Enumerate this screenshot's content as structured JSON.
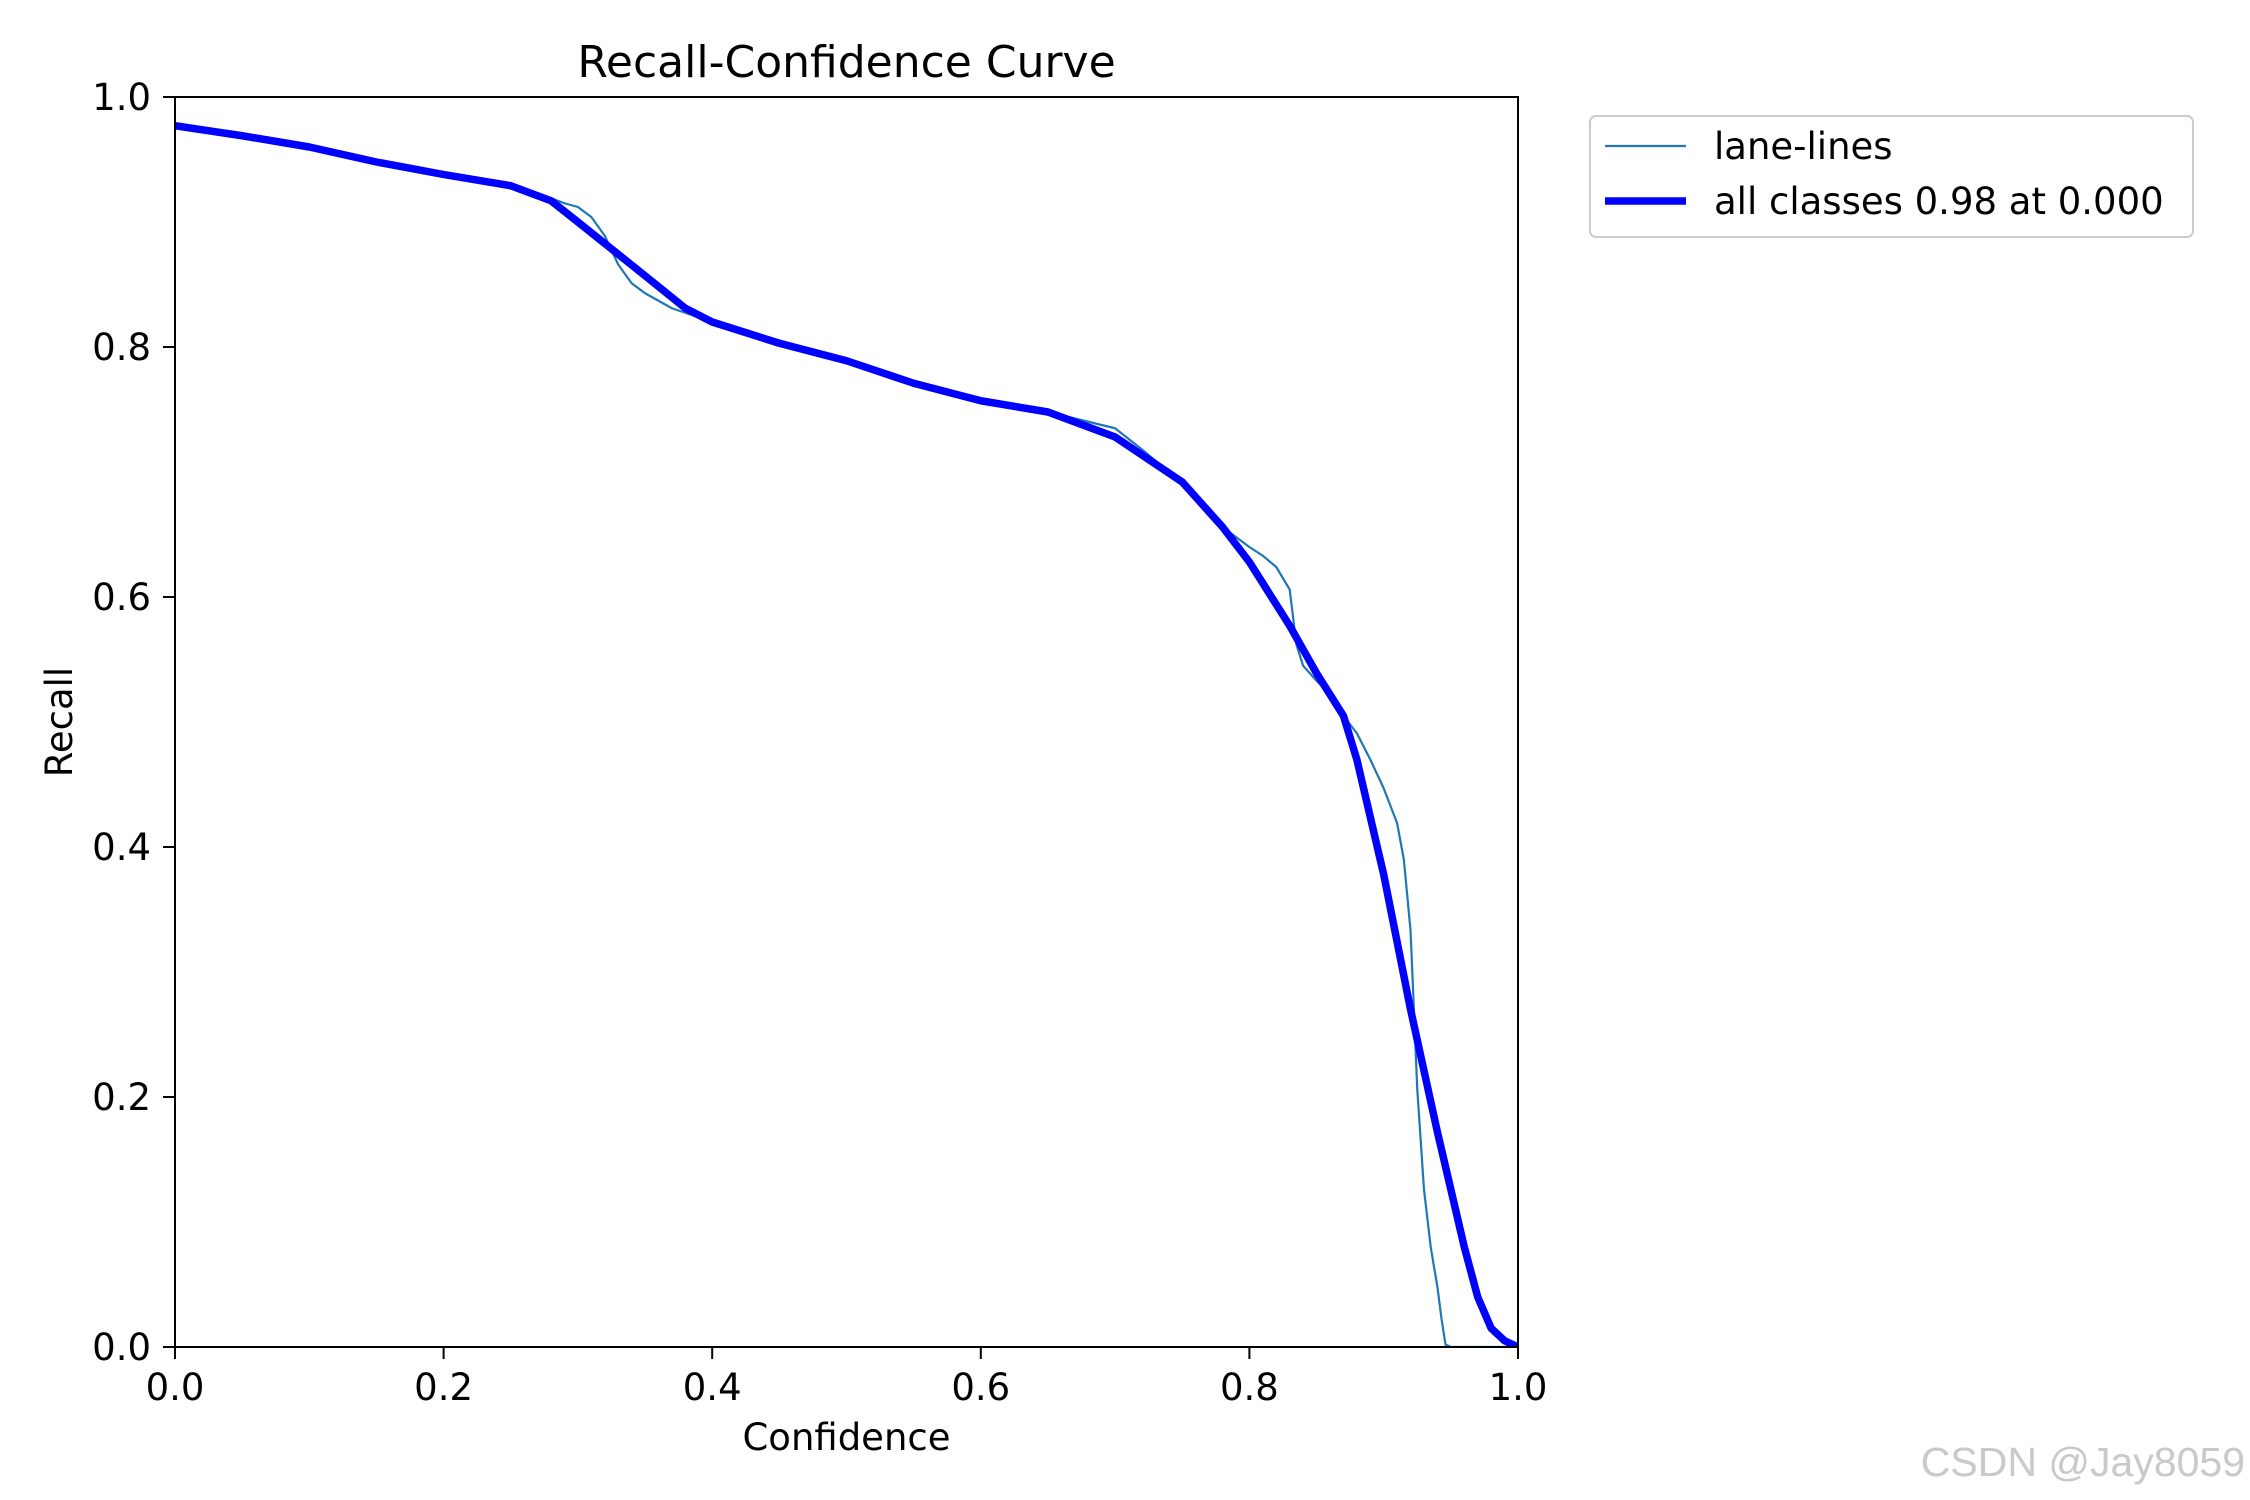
{
  "watermark": "CSDN @Jay8059",
  "colors": {
    "frame": "#000000",
    "legend_border": "#cccccc",
    "watermark": "#c9c9c9"
  },
  "chart_data": {
    "type": "line",
    "title": "Recall-Confidence Curve",
    "xlabel": "Confidence",
    "ylabel": "Recall",
    "xlim": [
      0,
      1
    ],
    "ylim": [
      0,
      1
    ],
    "xticks": [
      0,
      0.2,
      0.4,
      0.6,
      0.8,
      1.0
    ],
    "xtick_labels": [
      "0.0",
      "0.2",
      "0.4",
      "0.6",
      "0.8",
      "1.0"
    ],
    "yticks": [
      0,
      0.2,
      0.4,
      0.6,
      0.8,
      1.0
    ],
    "ytick_labels": [
      "0.0",
      "0.2",
      "0.4",
      "0.6",
      "0.8",
      "1.0"
    ],
    "grid": false,
    "legend_position": "outside upper right",
    "series": [
      {
        "name": "lane-lines",
        "color": "#1f77b4",
        "x": [
          0,
          0.05,
          0.1,
          0.15,
          0.2,
          0.25,
          0.28,
          0.29,
          0.3,
          0.31,
          0.32,
          0.33,
          0.34,
          0.35,
          0.37,
          0.4,
          0.45,
          0.5,
          0.55,
          0.6,
          0.65,
          0.7,
          0.72,
          0.73,
          0.75,
          0.78,
          0.8,
          0.81,
          0.82,
          0.83,
          0.835,
          0.84,
          0.85,
          0.86,
          0.87,
          0.88,
          0.89,
          0.9,
          0.91,
          0.915,
          0.92,
          0.925,
          0.93,
          0.935,
          0.94,
          0.943,
          0.946,
          0.95,
          1.0
        ],
        "y": [
          0.977,
          0.969,
          0.961,
          0.949,
          0.937,
          0.928,
          0.919,
          0.915,
          0.912,
          0.904,
          0.889,
          0.866,
          0.851,
          0.843,
          0.831,
          0.82,
          0.803,
          0.789,
          0.771,
          0.757,
          0.748,
          0.735,
          0.718,
          0.709,
          0.692,
          0.656,
          0.64,
          0.633,
          0.624,
          0.606,
          0.562,
          0.545,
          0.533,
          0.522,
          0.505,
          0.491,
          0.47,
          0.447,
          0.419,
          0.39,
          0.333,
          0.206,
          0.126,
          0.08,
          0.048,
          0.023,
          0.002,
          0.0,
          0.0
        ]
      },
      {
        "name": "all classes 0.98 at 0.000",
        "color": "#0000ff",
        "x": [
          0,
          0.05,
          0.1,
          0.15,
          0.2,
          0.25,
          0.28,
          0.3,
          0.35,
          0.38,
          0.4,
          0.45,
          0.5,
          0.55,
          0.6,
          0.65,
          0.7,
          0.75,
          0.78,
          0.8,
          0.83,
          0.85,
          0.87,
          0.88,
          0.9,
          0.92,
          0.94,
          0.96,
          0.97,
          0.98,
          0.99,
          1.0
        ],
        "y": [
          0.977,
          0.969,
          0.96,
          0.948,
          0.938,
          0.929,
          0.917,
          0.9,
          0.857,
          0.831,
          0.82,
          0.803,
          0.789,
          0.771,
          0.757,
          0.748,
          0.728,
          0.692,
          0.656,
          0.628,
          0.577,
          0.539,
          0.505,
          0.47,
          0.378,
          0.27,
          0.172,
          0.08,
          0.04,
          0.015,
          0.005,
          0.0
        ]
      }
    ]
  }
}
